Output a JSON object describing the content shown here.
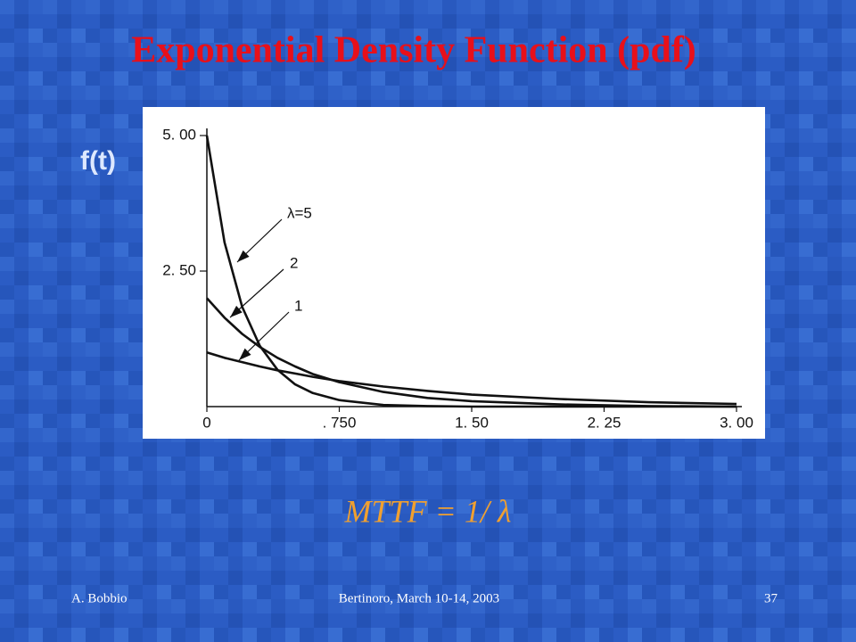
{
  "title": "Exponential Density Function (pdf)",
  "formula": "MTTF = 1/ λ",
  "footer": {
    "author": "A. Bobbio",
    "event": "Bertinoro, March 10-14, 2003",
    "page": "37"
  },
  "chart_data": {
    "type": "line",
    "ylabel": "f(t)",
    "x": [
      0,
      0.1,
      0.2,
      0.3,
      0.4,
      0.5,
      0.6,
      0.75,
      1.0,
      1.25,
      1.5,
      2.0,
      2.5,
      3.0
    ],
    "series": [
      {
        "name": "λ=5",
        "color": "#111111",
        "values": [
          5,
          3.03,
          1.84,
          1.12,
          0.68,
          0.41,
          0.25,
          0.12,
          0.03,
          0.01,
          0,
          0,
          0,
          0
        ]
      },
      {
        "name": "2",
        "color": "#111111",
        "values": [
          2,
          1.64,
          1.34,
          1.1,
          0.9,
          0.74,
          0.6,
          0.45,
          0.27,
          0.16,
          0.1,
          0.04,
          0.01,
          0
        ]
      },
      {
        "name": "1",
        "color": "#111111",
        "values": [
          1,
          0.9,
          0.82,
          0.74,
          0.67,
          0.61,
          0.55,
          0.47,
          0.37,
          0.29,
          0.22,
          0.14,
          0.08,
          0.05
        ]
      }
    ],
    "xlim": [
      0,
      3
    ],
    "ylim": [
      0,
      5
    ],
    "xticks": [
      0,
      {
        "value": 0.75,
        "label": ". 750"
      },
      {
        "value": 1.5,
        "label": "1. 50"
      },
      {
        "value": 2.25,
        "label": "2. 25"
      },
      {
        "value": 3,
        "label": "3. 00"
      }
    ],
    "yticks": [
      {
        "value": 2.5,
        "label": "2. 50"
      },
      {
        "value": 5,
        "label": "5. 00"
      }
    ]
  }
}
